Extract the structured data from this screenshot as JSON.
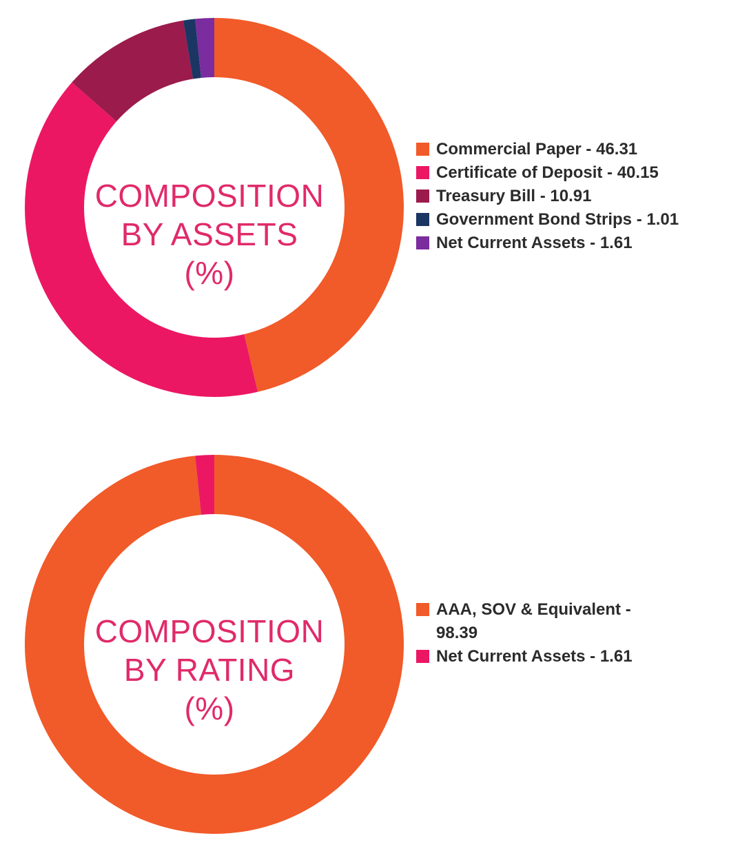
{
  "chart_data": [
    {
      "type": "pie",
      "title": "COMPOSITION BY ASSETS (%)",
      "title_lines": [
        "COMPOSITION",
        "BY ASSETS",
        "(%)"
      ],
      "donut": true,
      "legend_position": "right",
      "slices": [
        {
          "label": "Commercial Paper - 46.31",
          "name": "Commercial Paper",
          "value": 46.31,
          "color": "#f15a29"
        },
        {
          "label": "Certificate of Deposit - 40.15",
          "name": "Certificate of Deposit",
          "value": 40.15,
          "color": "#ec1763"
        },
        {
          "label": "Treasury Bill - 10.91",
          "name": "Treasury Bill",
          "value": 10.91,
          "color": "#9b1b4c"
        },
        {
          "label": "Government Bond Strips - 1.01",
          "name": "Government Bond Strips",
          "value": 1.01,
          "color": "#1b3663"
        },
        {
          "label": "Net Current Assets - 1.61",
          "name": "Net Current Assets",
          "value": 1.61,
          "color": "#7b2c9e"
        }
      ]
    },
    {
      "type": "pie",
      "title": "COMPOSITION BY RATING (%)",
      "title_lines": [
        "COMPOSITION",
        "BY RATING",
        "(%)"
      ],
      "donut": true,
      "legend_position": "right",
      "slices": [
        {
          "label": "AAA, SOV & Equivalent - 98.39",
          "label_lines": [
            "AAA, SOV & Equivalent -",
            "98.39"
          ],
          "name": "AAA, SOV & Equivalent",
          "value": 98.39,
          "color": "#f15a29"
        },
        {
          "label": "Net Current Assets - 1.61",
          "name": "Net Current Assets",
          "value": 1.61,
          "color": "#ec1763"
        }
      ]
    }
  ]
}
